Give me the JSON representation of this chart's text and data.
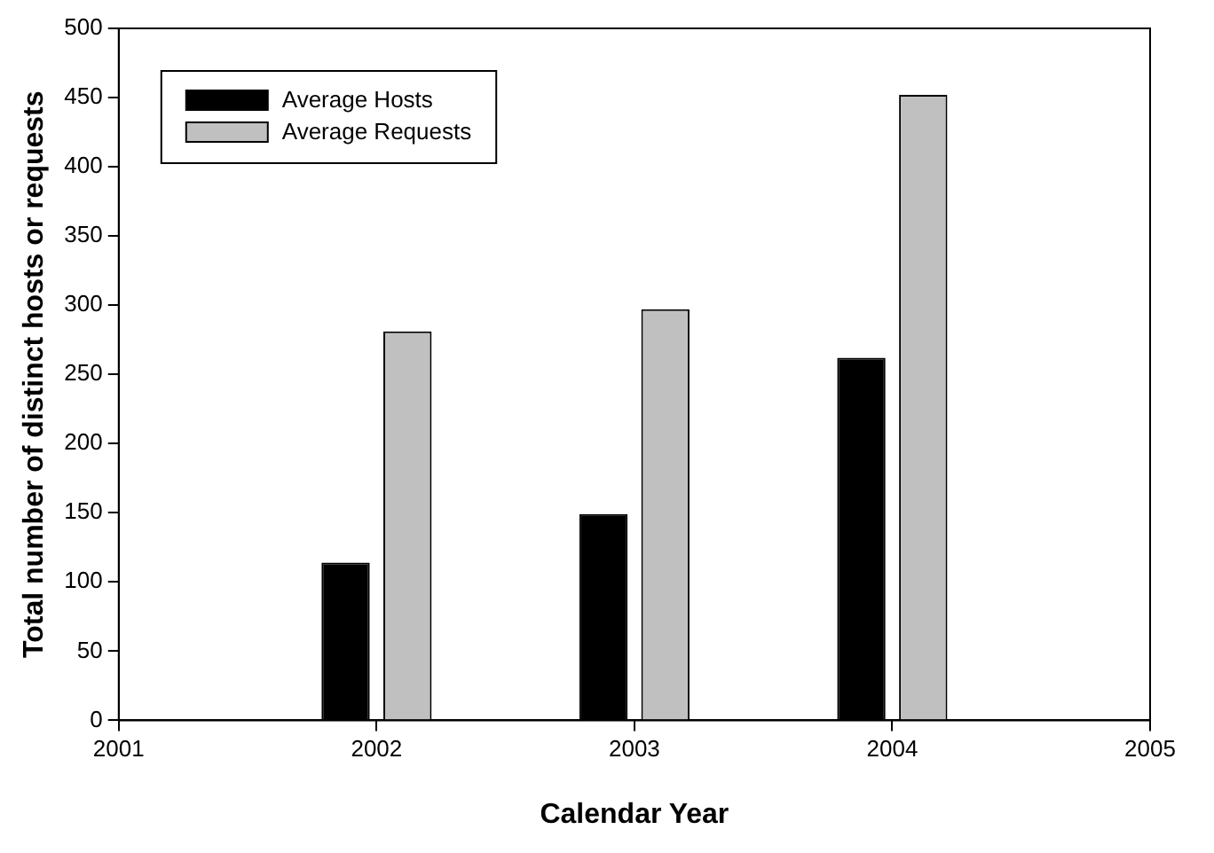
{
  "chart_data": {
    "type": "bar",
    "xlabel": "Calendar Year",
    "ylabel": "Total number of distinct hosts or requests",
    "x": [
      2002,
      2003,
      2004
    ],
    "series": [
      {
        "name": "Average Hosts",
        "color": "#000000",
        "values": [
          114,
          149,
          262
        ]
      },
      {
        "name": "Average Requests",
        "color": "#c0c0c0",
        "values": [
          281,
          297,
          452
        ]
      }
    ],
    "xlim": [
      2001,
      2005
    ],
    "xticks": [
      2001,
      2002,
      2003,
      2004,
      2005
    ],
    "ylim": [
      0,
      500
    ],
    "yticks": [
      0,
      50,
      100,
      150,
      200,
      250,
      300,
      350,
      400,
      450,
      500
    ],
    "grid": false,
    "legend": "top left"
  }
}
